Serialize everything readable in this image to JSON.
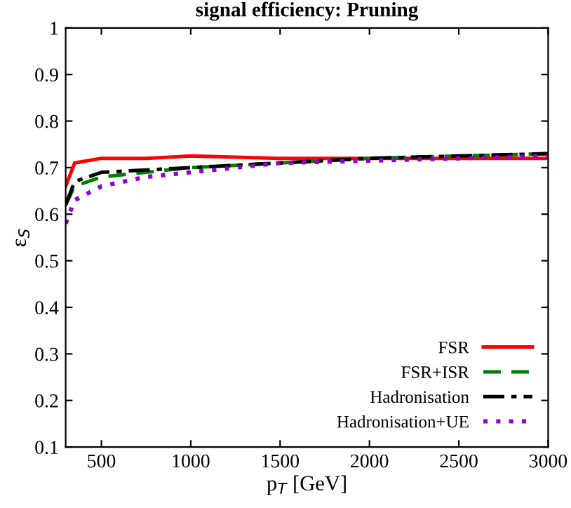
{
  "chart_data": {
    "type": "line",
    "title": "signal efficiency: Pruning",
    "xlabel": "p$_{T}$ [GeV]",
    "ylabel": "ε$_{S}$",
    "x": [
      300,
      350,
      500,
      750,
      1000,
      1500,
      2000,
      2500,
      3000
    ],
    "series": [
      {
        "name": "FSR",
        "color": "#ff0000",
        "line_style": "solid",
        "values": [
          0.66,
          0.71,
          0.72,
          0.72,
          0.725,
          0.72,
          0.72,
          0.72,
          0.72
        ]
      },
      {
        "name": "FSR+ISR",
        "color": "#008000",
        "line_style": "dashed",
        "values": [
          0.62,
          0.66,
          0.68,
          0.69,
          0.7,
          0.71,
          0.72,
          0.725,
          0.73
        ]
      },
      {
        "name": "Hadronisation",
        "color": "#000000",
        "line_style": "dashdot",
        "values": [
          0.62,
          0.67,
          0.69,
          0.695,
          0.7,
          0.71,
          0.72,
          0.725,
          0.73
        ]
      },
      {
        "name": "Hadronisation+UE",
        "color": "#9400d3",
        "line_style": "dotted",
        "values": [
          0.58,
          0.63,
          0.66,
          0.68,
          0.69,
          0.71,
          0.715,
          0.72,
          0.725
        ]
      }
    ],
    "xlim": [
      300,
      3000
    ],
    "xticks": [
      500,
      1000,
      1500,
      2000,
      2500,
      3000
    ],
    "ylim": [
      0.1,
      1
    ],
    "yticks": [
      0.1,
      0.2,
      0.3,
      0.4,
      0.5,
      0.6,
      0.7,
      0.8,
      0.9,
      1
    ],
    "grid": false,
    "legend": "bottom right",
    "marker": "none"
  }
}
